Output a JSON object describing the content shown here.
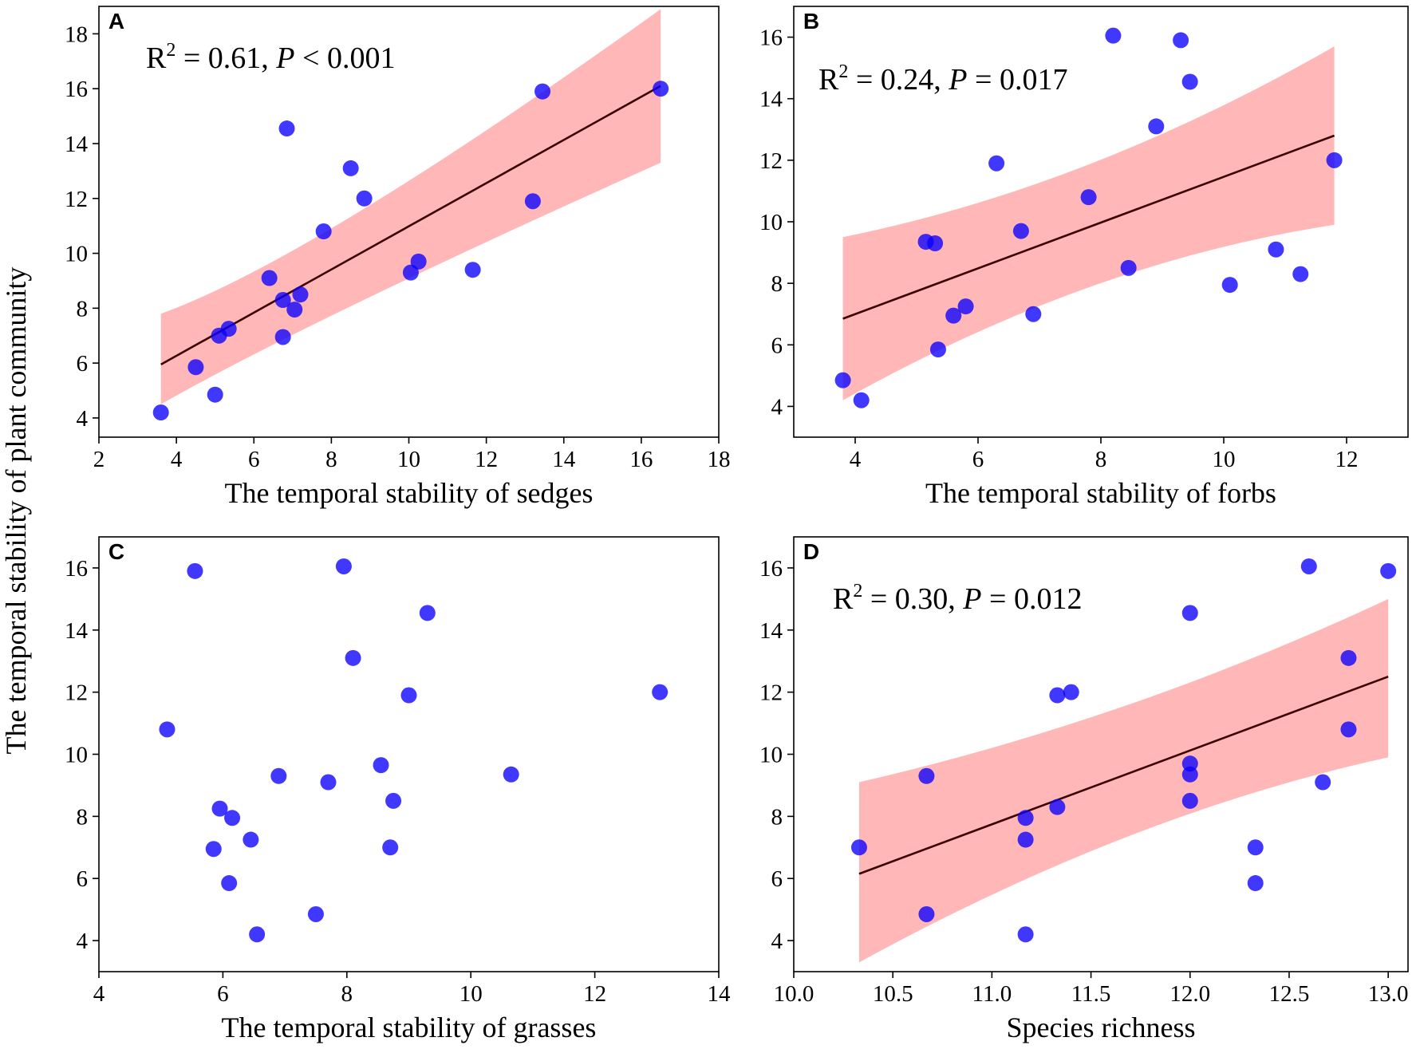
{
  "figure": {
    "shared_ylabel": "The temporal stability of plant community"
  },
  "colors": {
    "point": "#0a00ff",
    "band": "#ff8a8a",
    "fit_line": "#3b0000"
  },
  "chart_data": [
    {
      "panel": "A",
      "type": "scatter",
      "xlabel": "The temporal stability of sedges",
      "ylabel": "The temporal stability of plant community",
      "xlim": [
        2,
        18
      ],
      "ylim": [
        3.3,
        19
      ],
      "xticks": [
        2,
        4,
        6,
        8,
        10,
        12,
        14,
        16,
        18
      ],
      "yticks": [
        4,
        6,
        8,
        10,
        12,
        14,
        16,
        18
      ],
      "stat": {
        "r2_prefix": "R",
        "r2_value": " = 0.61, ",
        "p_symbol": "P",
        "p_value": " < 0.001"
      },
      "fit": {
        "x": [
          3.6,
          16.5
        ],
        "y": [
          5.95,
          16.1
        ],
        "ci_lower": [
          4.5,
          13.3
        ],
        "ci_upper": [
          7.8,
          18.9
        ],
        "ci_mid_x": 7.5,
        "ci_mid_lower": 8.2,
        "ci_mid_upper": 9.2
      },
      "points": [
        {
          "x": 3.6,
          "y": 4.2
        },
        {
          "x": 4.5,
          "y": 5.85
        },
        {
          "x": 5.0,
          "y": 4.85
        },
        {
          "x": 5.1,
          "y": 7.0
        },
        {
          "x": 5.35,
          "y": 7.25
        },
        {
          "x": 6.4,
          "y": 9.1
        },
        {
          "x": 6.75,
          "y": 8.3
        },
        {
          "x": 6.75,
          "y": 6.95
        },
        {
          "x": 6.85,
          "y": 14.55
        },
        {
          "x": 7.05,
          "y": 7.95
        },
        {
          "x": 7.2,
          "y": 8.5
        },
        {
          "x": 7.8,
          "y": 10.8
        },
        {
          "x": 8.5,
          "y": 13.1
        },
        {
          "x": 8.85,
          "y": 12.0
        },
        {
          "x": 10.05,
          "y": 9.3
        },
        {
          "x": 10.25,
          "y": 9.7
        },
        {
          "x": 11.65,
          "y": 9.4
        },
        {
          "x": 13.2,
          "y": 11.9
        },
        {
          "x": 13.45,
          "y": 15.9
        },
        {
          "x": 16.5,
          "y": 16.0
        }
      ]
    },
    {
      "panel": "B",
      "type": "scatter",
      "xlabel": "The temporal stability of forbs",
      "ylabel": "The temporal stability of plant community",
      "xlim": [
        3,
        13
      ],
      "ylim": [
        3,
        17
      ],
      "xticks": [
        4,
        6,
        8,
        10,
        12
      ],
      "yticks": [
        4,
        6,
        8,
        10,
        12,
        14,
        16
      ],
      "stat": {
        "r2_prefix": "R",
        "r2_value": " = 0.24, ",
        "p_symbol": "P",
        "p_value": " = 0.017"
      },
      "fit": {
        "x": [
          3.8,
          11.8
        ],
        "y": [
          6.85,
          12.8
        ],
        "ci_lower": [
          4.2,
          9.9
        ],
        "ci_upper": [
          9.5,
          15.7
        ],
        "ci_mid_x": 7.8,
        "ci_mid_lower": 9.2,
        "ci_mid_upper": 10.6
      },
      "points": [
        {
          "x": 3.8,
          "y": 4.85
        },
        {
          "x": 4.1,
          "y": 4.2
        },
        {
          "x": 5.15,
          "y": 9.35
        },
        {
          "x": 5.3,
          "y": 9.3
        },
        {
          "x": 5.35,
          "y": 5.85
        },
        {
          "x": 5.6,
          "y": 6.95
        },
        {
          "x": 5.8,
          "y": 7.25
        },
        {
          "x": 6.3,
          "y": 11.9
        },
        {
          "x": 6.7,
          "y": 9.7
        },
        {
          "x": 6.9,
          "y": 7.0
        },
        {
          "x": 7.8,
          "y": 10.8
        },
        {
          "x": 8.2,
          "y": 16.05
        },
        {
          "x": 8.45,
          "y": 8.5
        },
        {
          "x": 8.9,
          "y": 13.1
        },
        {
          "x": 9.3,
          "y": 15.9
        },
        {
          "x": 9.45,
          "y": 14.55
        },
        {
          "x": 10.1,
          "y": 7.95
        },
        {
          "x": 10.85,
          "y": 9.1
        },
        {
          "x": 11.25,
          "y": 8.3
        },
        {
          "x": 11.8,
          "y": 12.0
        }
      ]
    },
    {
      "panel": "C",
      "type": "scatter",
      "xlabel": "The temporal stability of grasses",
      "ylabel": "The temporal stability of plant community",
      "xlim": [
        4,
        14
      ],
      "ylim": [
        3,
        17
      ],
      "xticks": [
        4,
        6,
        8,
        10,
        12,
        14
      ],
      "yticks": [
        4,
        6,
        8,
        10,
        12,
        14,
        16
      ],
      "points": [
        {
          "x": 5.1,
          "y": 10.8
        },
        {
          "x": 5.55,
          "y": 15.9
        },
        {
          "x": 5.85,
          "y": 6.95
        },
        {
          "x": 5.95,
          "y": 8.25
        },
        {
          "x": 6.1,
          "y": 5.85
        },
        {
          "x": 6.15,
          "y": 7.95
        },
        {
          "x": 6.45,
          "y": 7.25
        },
        {
          "x": 6.55,
          "y": 4.2
        },
        {
          "x": 6.9,
          "y": 9.3
        },
        {
          "x": 7.5,
          "y": 4.85
        },
        {
          "x": 7.7,
          "y": 9.1
        },
        {
          "x": 7.95,
          "y": 16.05
        },
        {
          "x": 8.1,
          "y": 13.1
        },
        {
          "x": 8.55,
          "y": 9.65
        },
        {
          "x": 8.7,
          "y": 7.0
        },
        {
          "x": 8.75,
          "y": 8.5
        },
        {
          "x": 9.0,
          "y": 11.9
        },
        {
          "x": 9.3,
          "y": 14.55
        },
        {
          "x": 10.65,
          "y": 9.35
        },
        {
          "x": 13.05,
          "y": 12.0
        }
      ]
    },
    {
      "panel": "D",
      "type": "scatter",
      "xlabel": "Species richness",
      "ylabel": "The temporal stability of plant community",
      "xlim": [
        10.0,
        13.1
      ],
      "ylim": [
        3,
        17
      ],
      "xticks": [
        10.0,
        10.5,
        11.0,
        11.5,
        12.0,
        12.5,
        13.0
      ],
      "xtick_labels": [
        "10.0",
        "10.5",
        "11.0",
        "11.5",
        "12.0",
        "12.5",
        "13.0"
      ],
      "yticks": [
        4,
        6,
        8,
        10,
        12,
        14,
        16
      ],
      "stat": {
        "r2_prefix": "R",
        "r2_value": " = 0.30, ",
        "p_symbol": "P",
        "p_value": " = 0.012"
      },
      "fit": {
        "x": [
          10.33,
          13.0
        ],
        "y": [
          6.15,
          12.5
        ],
        "ci_lower": [
          3.3,
          9.9
        ],
        "ci_upper": [
          9.1,
          15.0
        ],
        "ci_mid_x": 11.7,
        "ci_mid_lower": 8.6,
        "ci_mid_upper": 10.6
      },
      "points": [
        {
          "x": 10.33,
          "y": 7.0
        },
        {
          "x": 10.67,
          "y": 9.3
        },
        {
          "x": 10.67,
          "y": 4.85
        },
        {
          "x": 11.17,
          "y": 7.95
        },
        {
          "x": 11.17,
          "y": 7.25
        },
        {
          "x": 11.17,
          "y": 4.2
        },
        {
          "x": 11.33,
          "y": 11.9
        },
        {
          "x": 11.33,
          "y": 8.3
        },
        {
          "x": 11.4,
          "y": 12.0
        },
        {
          "x": 12.0,
          "y": 14.55
        },
        {
          "x": 12.0,
          "y": 9.7
        },
        {
          "x": 12.0,
          "y": 9.35
        },
        {
          "x": 12.0,
          "y": 8.5
        },
        {
          "x": 12.33,
          "y": 7.0
        },
        {
          "x": 12.33,
          "y": 5.85
        },
        {
          "x": 12.6,
          "y": 16.05
        },
        {
          "x": 12.67,
          "y": 9.1
        },
        {
          "x": 12.8,
          "y": 13.1
        },
        {
          "x": 12.8,
          "y": 10.8
        },
        {
          "x": 13.0,
          "y": 15.9
        }
      ]
    }
  ]
}
